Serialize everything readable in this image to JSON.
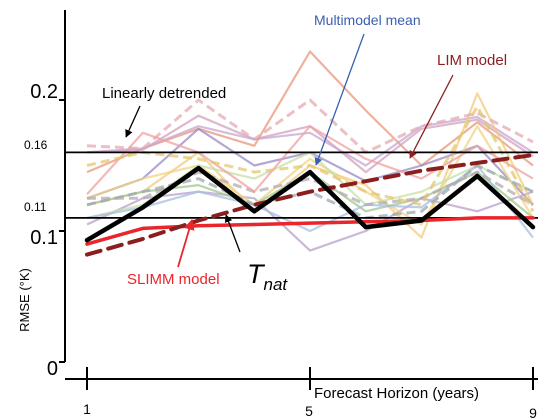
{
  "chart_data": {
    "type": "line",
    "ylabel": "RMSE (°K)",
    "xlabel": "Forecast Horizon (years)",
    "x_ticks": [
      1,
      5,
      9
    ],
    "x_tick_labels": [
      "1",
      "5",
      "9"
    ],
    "y_ticks": [
      0,
      0.1,
      0.2
    ],
    "y_tick_labels": [
      "0",
      "0.1",
      "0.2"
    ],
    "y_ref_labels": [
      "0.16",
      "0.11"
    ],
    "xlim": [
      0.6,
      9.2
    ],
    "ylim": [
      -0.005,
      0.285
    ],
    "grid": false,
    "reference_lines": [
      {
        "y": 0.16,
        "label": "0.16"
      },
      {
        "y": 0.11,
        "label": "0.11"
      }
    ],
    "annotations": {
      "linearly_detrended": "Linearly detrended",
      "multimodel_mean": "Multimodel mean",
      "lim_model": "LIM model",
      "slimm_model": "SLIMM model",
      "tnat_main": "T",
      "tnat_sub": "nat"
    },
    "series": [
      {
        "name": "T_nat",
        "color": "#000000",
        "x": [
          1,
          2,
          3,
          4,
          5,
          6,
          7,
          8,
          9
        ],
        "y": [
          0.093,
          0.118,
          0.148,
          0.115,
          0.145,
          0.103,
          0.108,
          0.142,
          0.103
        ]
      },
      {
        "name": "LIM model",
        "color": "#8b1e1e",
        "dash": true,
        "x": [
          1,
          2,
          3,
          4,
          5,
          6,
          7,
          8,
          9
        ],
        "y": [
          0.082,
          0.094,
          0.108,
          0.12,
          0.13,
          0.138,
          0.146,
          0.152,
          0.158
        ]
      },
      {
        "name": "SLIMM model",
        "color": "#e8262b",
        "x": [
          1,
          2,
          3,
          4,
          5,
          6,
          7,
          8,
          9
        ],
        "y": [
          0.09,
          0.102,
          0.104,
          0.105,
          0.106,
          0.107,
          0.108,
          0.11,
          0.11
        ]
      }
    ],
    "background_series": [
      {
        "color": "#e8977a",
        "y": [
          0.145,
          0.163,
          0.178,
          0.165,
          0.237,
          0.192,
          0.15,
          0.183,
          0.15
        ]
      },
      {
        "color": "#d3a0bb",
        "y": [
          0.16,
          0.162,
          0.188,
          0.17,
          0.18,
          0.145,
          0.178,
          0.185,
          0.157
        ]
      },
      {
        "color": "#c8a5d0",
        "y": [
          0.16,
          0.163,
          0.18,
          0.17,
          0.175,
          0.15,
          0.18,
          0.187,
          0.16
        ]
      },
      {
        "color": "#9a8ac6",
        "y": [
          0.125,
          0.14,
          0.178,
          0.15,
          0.16,
          0.138,
          0.15,
          0.165,
          0.12
        ]
      },
      {
        "color": "#b9a0c9",
        "y": [
          0.105,
          0.125,
          0.13,
          0.125,
          0.085,
          0.1,
          0.125,
          0.115,
          0.13
        ]
      },
      {
        "color": "#f3c97e",
        "y": [
          0.12,
          0.13,
          0.16,
          0.115,
          0.15,
          0.135,
          0.095,
          0.205,
          0.12
        ]
      },
      {
        "color": "#f2d37f",
        "y": [
          0.125,
          0.14,
          0.15,
          0.12,
          0.155,
          0.13,
          0.105,
          0.18,
          0.11
        ]
      },
      {
        "color": "#c4e0a4",
        "y": [
          0.11,
          0.12,
          0.15,
          0.14,
          0.16,
          0.12,
          0.13,
          0.15,
          0.13
        ]
      },
      {
        "color": "#9fc78a",
        "y": [
          0.12,
          0.13,
          0.135,
          0.12,
          0.145,
          0.115,
          0.125,
          0.145,
          0.11
        ]
      },
      {
        "color": "#a4bfe3",
        "y": [
          0.11,
          0.118,
          0.13,
          0.12,
          0.1,
          0.12,
          0.118,
          0.15,
          0.095
        ]
      },
      {
        "color": "#9ea8b0",
        "dash": true,
        "y": [
          0.12,
          0.13,
          0.14,
          0.12,
          0.13,
          0.11,
          0.115,
          0.15,
          0.13
        ]
      },
      {
        "color": "#b4aab0",
        "dash": true,
        "y": [
          0.125,
          0.125,
          0.145,
          0.13,
          0.14,
          0.12,
          0.125,
          0.145,
          0.12
        ]
      },
      {
        "color": "#e4abb0",
        "dash": true,
        "y": [
          0.165,
          0.163,
          0.2,
          0.17,
          0.2,
          0.16,
          0.18,
          0.19,
          0.168
        ]
      },
      {
        "color": "#f0a0a0",
        "y": [
          0.128,
          0.175,
          0.16,
          0.13,
          0.18,
          0.155,
          0.14,
          0.165,
          0.14
        ]
      },
      {
        "color": "#e3c76f",
        "dash": true,
        "y": [
          0.15,
          0.16,
          0.155,
          0.145,
          0.15,
          0.13,
          0.12,
          0.195,
          0.115
        ]
      }
    ]
  }
}
